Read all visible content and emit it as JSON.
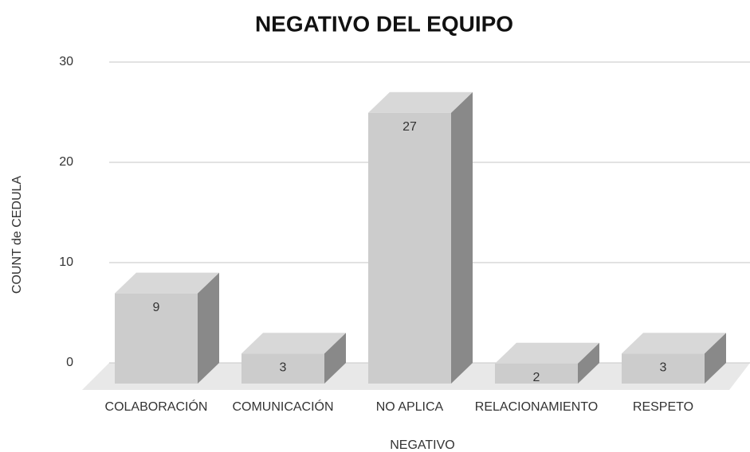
{
  "chart_data": {
    "type": "bar",
    "title": "NEGATIVO DEL EQUIPO",
    "x_label": "NEGATIVO",
    "y_label": "COUNT de CEDULA",
    "categories": [
      "COLABORACIÓN",
      "COMUNICACIÓN",
      "NO APLICA",
      "RELACIONAMIENTO",
      "RESPETO"
    ],
    "values": [
      9,
      3,
      27,
      2,
      3
    ],
    "color": "#cccccc",
    "ylim": [
      0,
      30
    ],
    "yticks": [
      0,
      10,
      20,
      30
    ],
    "grid": true
  }
}
